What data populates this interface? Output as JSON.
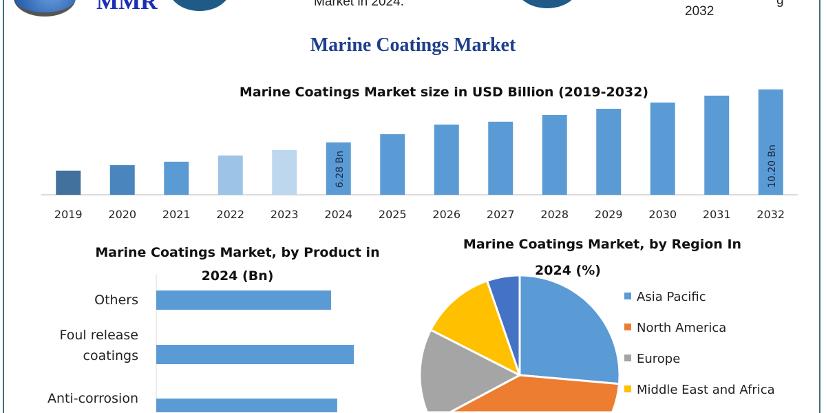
{
  "header": {
    "logo_text": "MMR",
    "fragment_left": "Market in 2024.",
    "fragment_right": "2032",
    "fragment_right_cut": "g"
  },
  "main_title": "Marine Coatings Market",
  "colors": {
    "bar": "#5b9bd5",
    "bar_2019": "#41719c",
    "bar_2020": "#4a86bd",
    "bar_2022": "#9dc3e6",
    "bar_2023": "#bdd7ee",
    "title": "#1f3e8c"
  },
  "chart_data": [
    {
      "type": "bar",
      "title": "Marine Coatings Market size in USD Billion (2019-2032)",
      "categories": [
        "2019",
        "2020",
        "2021",
        "2022",
        "2023",
        "2024",
        "2025",
        "2026",
        "2027",
        "2028",
        "2029",
        "2030",
        "2031",
        "2032"
      ],
      "values": [
        4.19,
        4.6,
        4.85,
        5.31,
        5.72,
        6.28,
        6.89,
        7.6,
        7.81,
        8.31,
        8.77,
        9.23,
        9.74,
        10.2
      ],
      "data_labels": {
        "2024": "6.28 Bn",
        "2032": "10.20 Bn"
      },
      "ylim": [
        2.4,
        10.4
      ],
      "grid": false
    },
    {
      "type": "bar",
      "orientation": "horizontal",
      "title_line1": "Marine Coatings Market, by Product in",
      "title_line2": "2024 (Bn)",
      "categories": [
        "Others",
        "Foul release coatings",
        "Anti-corrosion"
      ],
      "category_lines": [
        [
          "Others"
        ],
        [
          "Foul release",
          "coatings"
        ],
        [
          "Anti-corrosion"
        ]
      ],
      "relative_values": [
        0.885,
        1.0,
        0.916
      ]
    },
    {
      "type": "pie",
      "title_line1": "Marine Coatings Market, by Region In",
      "title_line2": "2024 (%)",
      "slices": [
        {
          "name": "Asia Pacific",
          "value": 26.4,
          "color": "#5b9bd5"
        },
        {
          "name": "North America",
          "value": 40.8,
          "color": "#ed7d31"
        },
        {
          "name": "Europe",
          "value": 15.3,
          "color": "#a5a5a5"
        },
        {
          "name": "Middle East and Africa",
          "value": 12.2,
          "color": "#ffc000"
        },
        {
          "value": 5.3,
          "color": "#4472c4"
        }
      ],
      "legend": "right"
    }
  ]
}
